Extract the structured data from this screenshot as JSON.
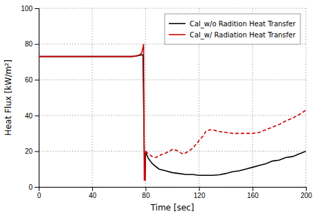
{
  "chart_data": {
    "type": "line",
    "xlabel": "Time [sec]",
    "ylabel": "Heat Flux [kW/m²]",
    "xlim": [
      0,
      200
    ],
    "ylim": [
      0,
      100
    ],
    "xticks": [
      0,
      40,
      80,
      120,
      160,
      200
    ],
    "yticks": [
      0,
      20,
      40,
      60,
      80,
      100
    ],
    "grid": true,
    "legend": "upper right",
    "series": [
      {
        "name": "Cal_w/o Radition Heat Transfer",
        "color": "#000000",
        "line_style": "solid",
        "x": [
          0,
          10,
          20,
          30,
          40,
          50,
          60,
          70,
          72,
          74,
          76,
          78,
          79,
          79.5,
          80,
          82,
          85,
          90,
          95,
          100,
          105,
          110,
          115,
          120,
          125,
          130,
          135,
          140,
          145,
          150,
          155,
          160,
          165,
          170,
          175,
          180,
          185,
          190,
          195,
          200
        ],
        "values": [
          73,
          73,
          73,
          73,
          73,
          73,
          73,
          73,
          73.2,
          73.5,
          73.8,
          74,
          20,
          3.5,
          19.5,
          16,
          13,
          10,
          9,
          8,
          7.5,
          7,
          7,
          6.5,
          6.5,
          6.5,
          6.8,
          7.5,
          8.5,
          9,
          10,
          11,
          12,
          13,
          14.5,
          15,
          16.5,
          17,
          18.5,
          20
        ]
      },
      {
        "name": "Cal_w/ Radiation Heat Transfer",
        "color": "#cc0000",
        "line_style": "solid",
        "x": [
          0,
          10,
          20,
          30,
          40,
          50,
          60,
          70,
          72,
          74,
          75,
          76,
          77,
          78,
          78.5,
          79,
          79.3,
          79.6,
          80
        ],
        "values": [
          73,
          73,
          73,
          73,
          73,
          73,
          73,
          73,
          73.2,
          73.5,
          73.8,
          74.2,
          75,
          78,
          80,
          3.5,
          4,
          3.5,
          20
        ]
      },
      {
        "color": "#cc0000",
        "line_style": "dashed",
        "x": [
          80,
          82,
          85,
          88,
          90,
          93,
          95,
          98,
          100,
          103,
          105,
          108,
          110,
          112,
          115,
          118,
          120,
          123,
          125,
          128,
          130,
          135,
          140,
          145,
          150,
          155,
          160,
          165,
          170,
          175,
          180,
          185,
          190,
          195,
          200
        ],
        "values": [
          20,
          18.5,
          17,
          16.5,
          17.5,
          18.5,
          19,
          20,
          21,
          20.5,
          19.5,
          18.5,
          19,
          20,
          21.5,
          24,
          26,
          28.5,
          31,
          32,
          32,
          31,
          30.5,
          30,
          30,
          30,
          30,
          30.5,
          32,
          33.5,
          35,
          37,
          38.5,
          40.5,
          43
        ]
      }
    ]
  }
}
